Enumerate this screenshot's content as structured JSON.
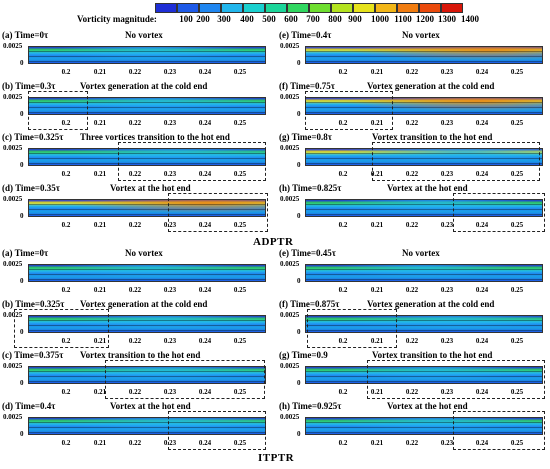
{
  "colorbar": {
    "title": "Vorticity magnitude:",
    "ticks": [
      "100",
      "200",
      "300",
      "400",
      "500",
      "600",
      "700",
      "800",
      "900",
      "1000",
      "1100",
      "1200",
      "1300",
      "1400"
    ],
    "colors": [
      "#1f2fd6",
      "#1e5ae8",
      "#1f86f0",
      "#22b6ec",
      "#1ad0cf",
      "#1cd69a",
      "#30d760",
      "#6ede2f",
      "#b4e31f",
      "#e6e21b",
      "#f2b617",
      "#f07c10",
      "#ea4a0c",
      "#d8170a"
    ]
  },
  "sections": [
    {
      "title": "ADPTR",
      "panels": [
        {
          "label": "(a) Time=0τ",
          "caption": "No vortex",
          "intensity": 0.25
        },
        {
          "label": "(e) Time=0.4τ",
          "caption": "No vortex",
          "intensity": 0.75
        },
        {
          "label": "(b) Time=0.3τ",
          "caption": "Vortex generation at the cold end",
          "intensity": 0.3
        },
        {
          "label": "(f) Time=0.75τ",
          "caption": "Vortex generation at the cold end",
          "intensity": 0.65
        },
        {
          "label": "(c) Time=0.325τ",
          "caption": "Three vortices transition to the hot end",
          "intensity": 0.45
        },
        {
          "label": "(g) Time=0.8τ",
          "caption": "Vortex transition to the hot end",
          "intensity": 0.55
        },
        {
          "label": "(d) Time=0.35τ",
          "caption": "Vortex at the hot end",
          "intensity": 0.7
        },
        {
          "label": "(h) Time=0.825τ",
          "caption": "Vortex at the hot end",
          "intensity": 0.3
        }
      ]
    },
    {
      "title": "ITPTR",
      "panels": [
        {
          "label": "(a) Time=0τ",
          "caption": "No vortex",
          "intensity": 0.25
        },
        {
          "label": "(e) Time=0.45τ",
          "caption": "No vortex",
          "intensity": 0.2
        },
        {
          "label": "(b) Time=0.325τ",
          "caption": "Vortex generation at the cold end",
          "intensity": 0.35
        },
        {
          "label": "(f) Time=0.875τ",
          "caption": "Vortex generation at the cold end",
          "intensity": 0.45
        },
        {
          "label": "(c) Time=0.375τ",
          "caption": "Vortex transition to the hot end",
          "intensity": 0.35
        },
        {
          "label": "(g) Time=0.9",
          "caption": "Vortex transition to the hot end",
          "intensity": 0.3
        },
        {
          "label": "(d) Time=0.4τ",
          "caption": "Vortex at the hot end",
          "intensity": 0.4
        },
        {
          "label": "(h) Time=0.925τ",
          "caption": "Vortex at the hot end",
          "intensity": 0.3
        }
      ]
    }
  ],
  "axes": {
    "y_ticks": [
      "0.0025",
      "0"
    ],
    "x_ticks": [
      "0.2",
      "0.21",
      "0.22",
      "0.23",
      "0.24",
      "0.25"
    ]
  }
}
